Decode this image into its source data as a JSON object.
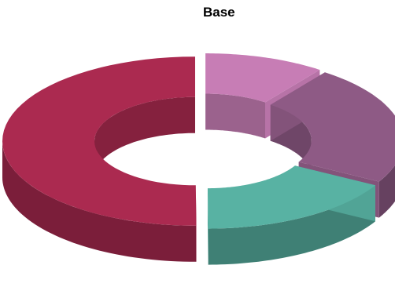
{
  "chart_data": {
    "type": "pie",
    "style": "3d-doughnut-exploded",
    "title": "Base",
    "legend": "none",
    "slices": [
      {
        "value": 10.1,
        "color": "#c77db5"
      },
      {
        "value": 23.0,
        "color": "#8e5a85"
      },
      {
        "value": 16.8,
        "color": "#58b2a3"
      },
      {
        "value": 50.1,
        "color": "#ab2a50"
      }
    ]
  }
}
